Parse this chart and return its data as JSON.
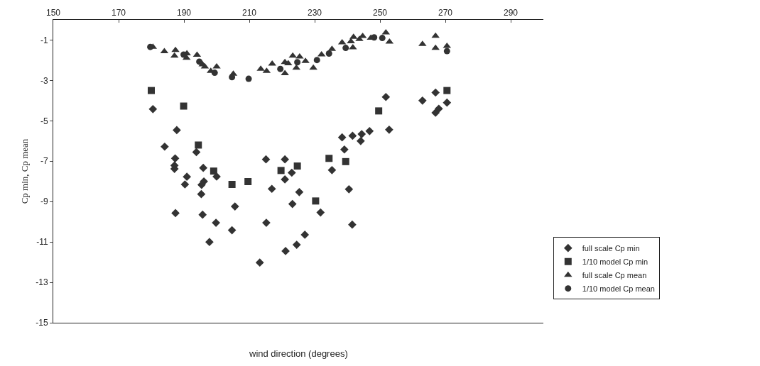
{
  "chart_data": {
    "type": "scatter",
    "xlabel": "wind direction (degrees)",
    "ylabel": "Cp min, Cp mean",
    "xlim": [
      150,
      300
    ],
    "xticks": [
      150,
      170,
      190,
      210,
      230,
      250,
      270,
      290
    ],
    "ylim": [
      -15,
      0
    ],
    "yticks": [
      -1,
      -3,
      -5,
      -7,
      -9,
      -11,
      -13,
      -15
    ],
    "grid": false,
    "legend": "right",
    "series": [
      {
        "name": "full scale Cp min",
        "color": "#333333",
        "marker": "diamond",
        "x": [
          180.5,
          187.8,
          184.1,
          193.8,
          187.3,
          187.1,
          187.1,
          190.9,
          190.3,
          195.9,
          196.1,
          195.4,
          195.3,
          187.4,
          195.7,
          199.8,
          197.8,
          200.0,
          251.8,
          252.8,
          246.8,
          244.4,
          241.6,
          244.1,
          238.4,
          239.1,
          235.3,
          215.1,
          220.9,
          223.0,
          220.9,
          216.9,
          225.3,
          223.2,
          240.5,
          231.8,
          205.6,
          204.7,
          215.2,
          227.0,
          224.5,
          221.1,
          213.2,
          241.5,
          263.0,
          267.0,
          267.0,
          268.0,
          270.5
        ],
        "values": [
          -4.42,
          -5.46,
          -6.28,
          -6.55,
          -6.86,
          -7.21,
          -7.38,
          -7.77,
          -8.15,
          -7.33,
          -8.0,
          -8.17,
          -8.63,
          -9.57,
          -9.65,
          -10.05,
          -11.0,
          -7.76,
          -3.82,
          -5.44,
          -5.51,
          -5.66,
          -5.74,
          -6.0,
          -5.82,
          -6.42,
          -7.44,
          -6.91,
          -6.91,
          -7.57,
          -7.9,
          -8.37,
          -8.53,
          -9.12,
          -8.39,
          -9.54,
          -9.24,
          -10.42,
          -10.05,
          -10.64,
          -11.14,
          -11.45,
          -12.02,
          -10.14,
          -4.0,
          -3.6,
          -4.6,
          -4.4,
          -4.1
        ]
      },
      {
        "name": "1/10 model Cp min",
        "color": "#333333",
        "marker": "square",
        "x": [
          180.0,
          189.9,
          194.4,
          199.1,
          204.7,
          209.6,
          219.7,
          224.7,
          230.3,
          234.4,
          239.5,
          249.6,
          270.5
        ],
        "values": [
          -3.5,
          -4.27,
          -6.2,
          -7.49,
          -8.15,
          -8.01,
          -7.46,
          -7.24,
          -8.97,
          -6.86,
          -7.02,
          -4.51,
          -3.5
        ]
      },
      {
        "name": "full scale Cp mean",
        "color": "#333333",
        "marker": "triangle",
        "x": [
          180.5,
          184.0,
          187.4,
          187.1,
          190.9,
          190.8,
          194.0,
          195.7,
          196.4,
          200.0,
          198.2,
          205.1,
          213.5,
          215.3,
          217.0,
          220.9,
          220.9,
          221.9,
          223.3,
          225.4,
          227.2,
          224.4,
          229.6,
          232.1,
          235.3,
          238.4,
          241.1,
          241.7,
          241.9,
          243.7,
          244.7,
          247.2,
          251.8,
          252.9,
          263.0,
          267.0,
          267.0,
          270.5
        ],
        "values": [
          -1.34,
          -1.56,
          -1.5,
          -1.78,
          -1.67,
          -1.89,
          -1.74,
          -2.21,
          -2.32,
          -2.32,
          -2.54,
          -2.68,
          -2.43,
          -2.54,
          -2.18,
          -2.65,
          -2.1,
          -2.16,
          -1.78,
          -1.83,
          -2.05,
          -2.38,
          -2.38,
          -1.72,
          -1.45,
          -1.12,
          -1.07,
          -1.37,
          -0.85,
          -0.96,
          -0.81,
          -0.9,
          -0.63,
          -1.09,
          -1.2,
          -0.8,
          -1.4,
          -1.3
        ]
      },
      {
        "name": "1/10 model Cp mean",
        "color": "#333333",
        "marker": "circle",
        "x": [
          179.7,
          189.9,
          194.7,
          199.4,
          204.7,
          209.8,
          219.5,
          224.7,
          230.7,
          234.4,
          239.5,
          248.2,
          250.7,
          270.5
        ],
        "values": [
          -1.34,
          -1.72,
          -2.07,
          -2.62,
          -2.84,
          -2.92,
          -2.43,
          -2.1,
          -1.99,
          -1.67,
          -1.39,
          -0.87,
          -0.9,
          -1.55
        ]
      }
    ]
  }
}
